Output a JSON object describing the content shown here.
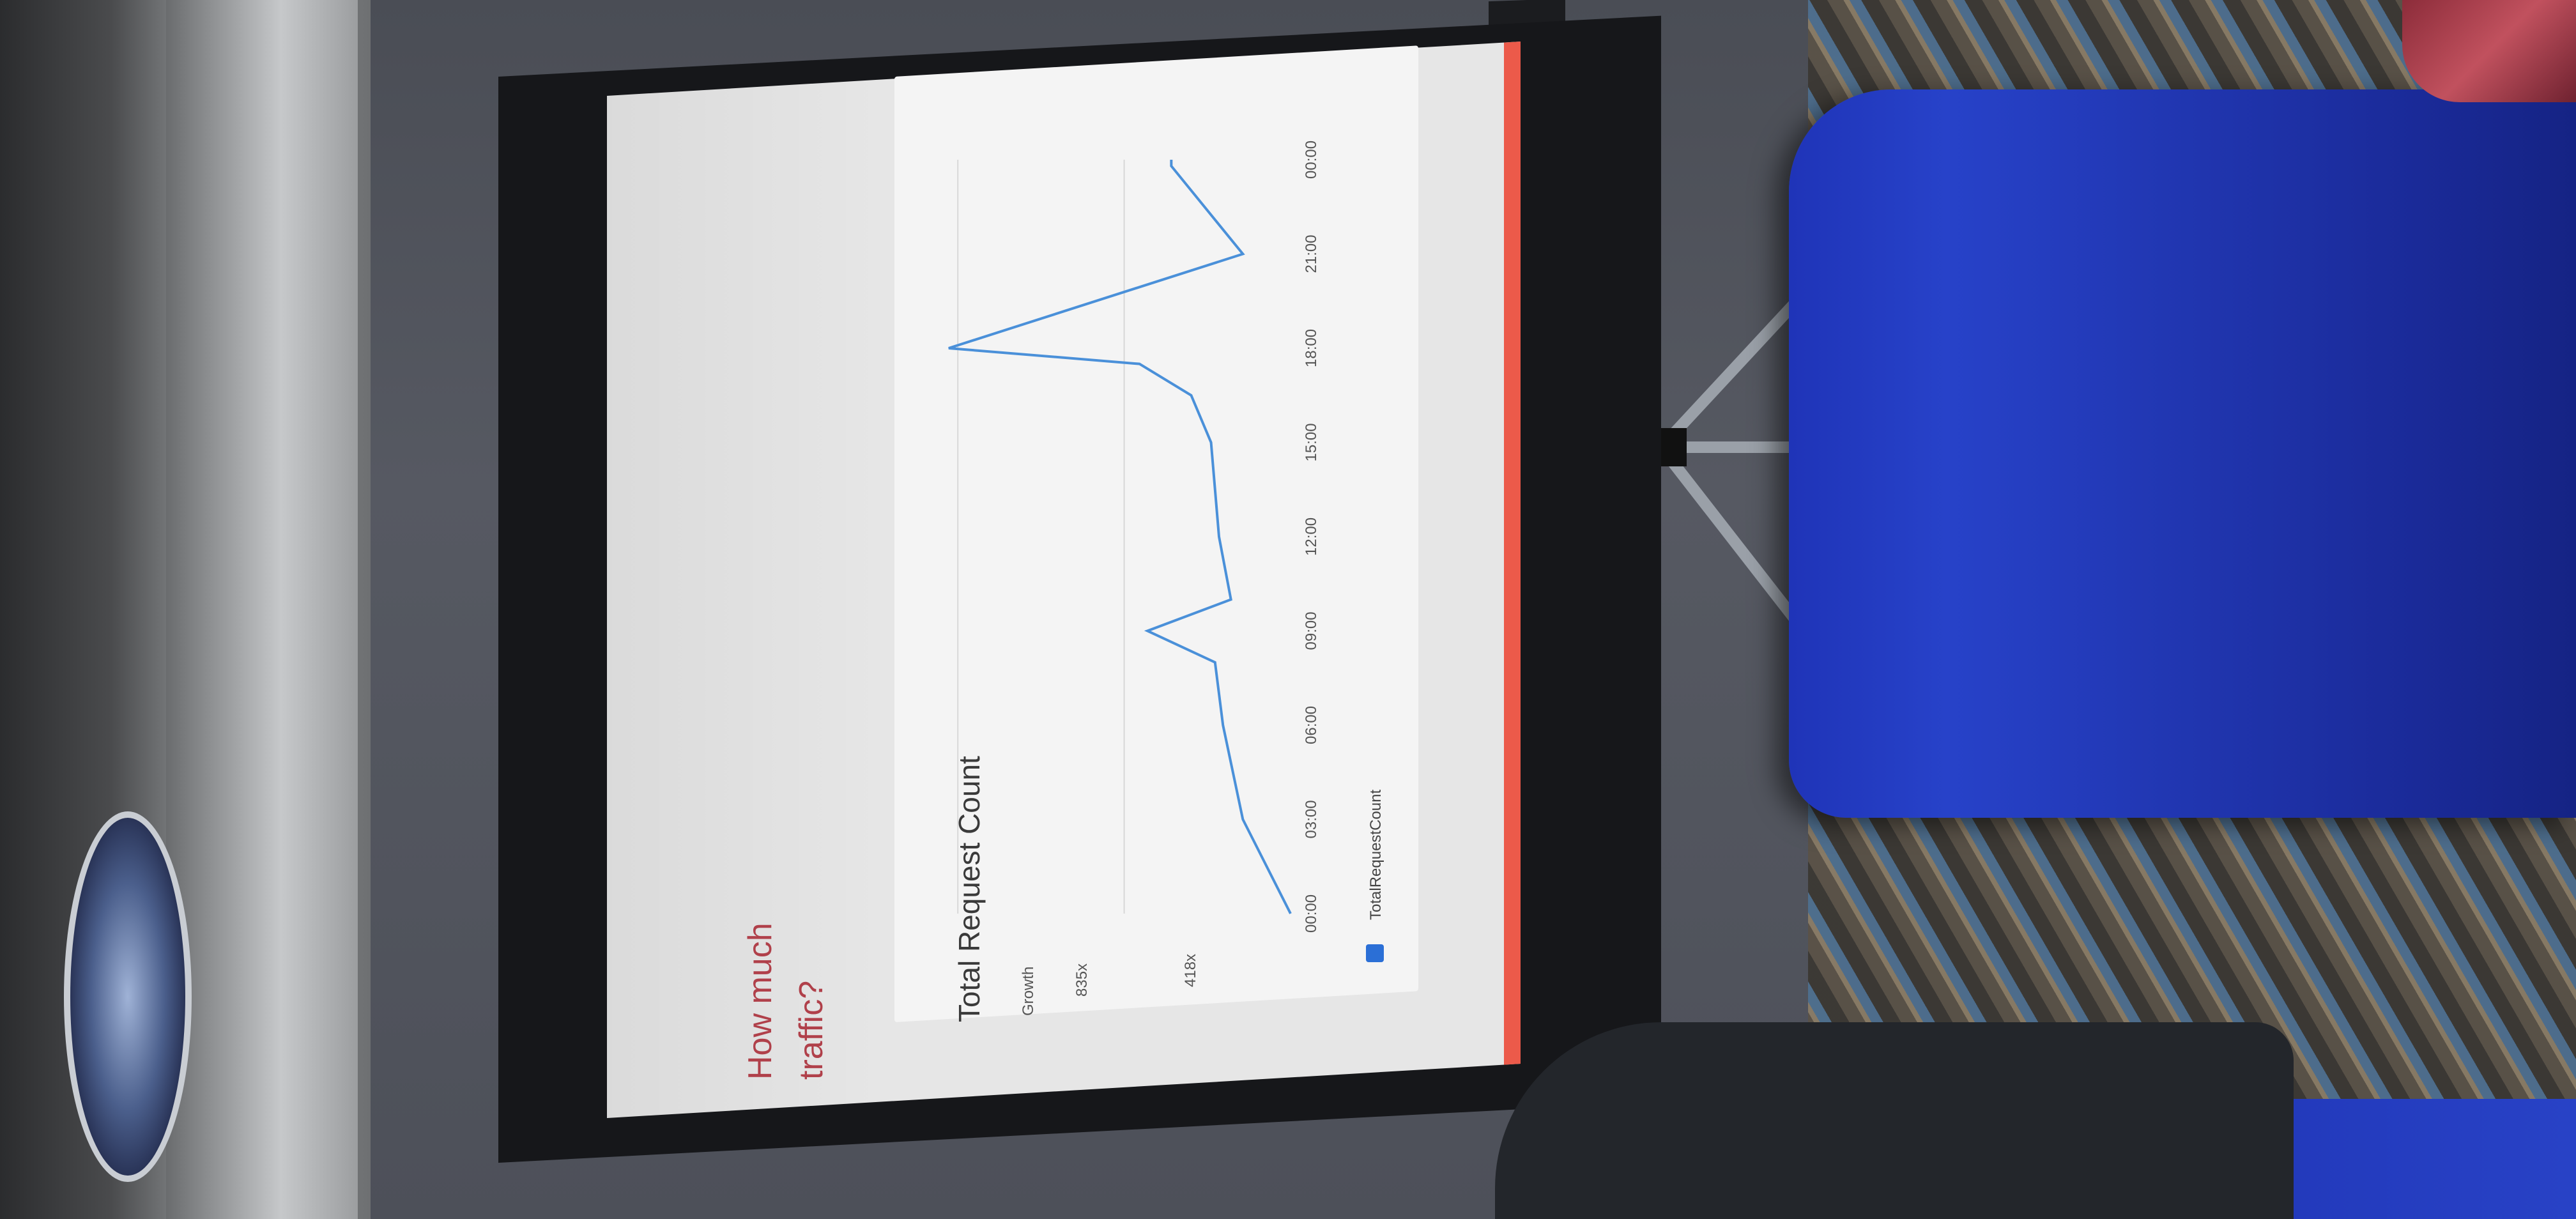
{
  "slide": {
    "title_line1": "How much",
    "title_line2": "traffic?",
    "accent_color": "#ec5a4a"
  },
  "chart_data": {
    "type": "line",
    "title": "Total Request Count",
    "ylabel": "Growth",
    "y_ticks": [
      "835x",
      "418x"
    ],
    "x": [
      "00:00",
      "03:00",
      "06:00",
      "09:00",
      "12:00",
      "15:00",
      "18:00",
      "21:00",
      "00:00"
    ],
    "series": [
      {
        "name": "TotalRequestCount",
        "color": "#4a90d9",
        "points": [
          [
            0,
            0
          ],
          [
            3,
            120
          ],
          [
            6,
            170
          ],
          [
            8,
            190
          ],
          [
            9,
            360
          ],
          [
            10,
            150
          ],
          [
            12,
            180
          ],
          [
            15,
            200
          ],
          [
            16.5,
            250
          ],
          [
            17.5,
            380
          ],
          [
            18,
            860
          ],
          [
            21,
            120
          ],
          [
            23.8,
            300
          ],
          [
            24,
            300
          ]
        ]
      }
    ],
    "xlim": [
      0,
      24
    ],
    "ylim": [
      0,
      900
    ],
    "legend": "bottom",
    "grid": true
  }
}
